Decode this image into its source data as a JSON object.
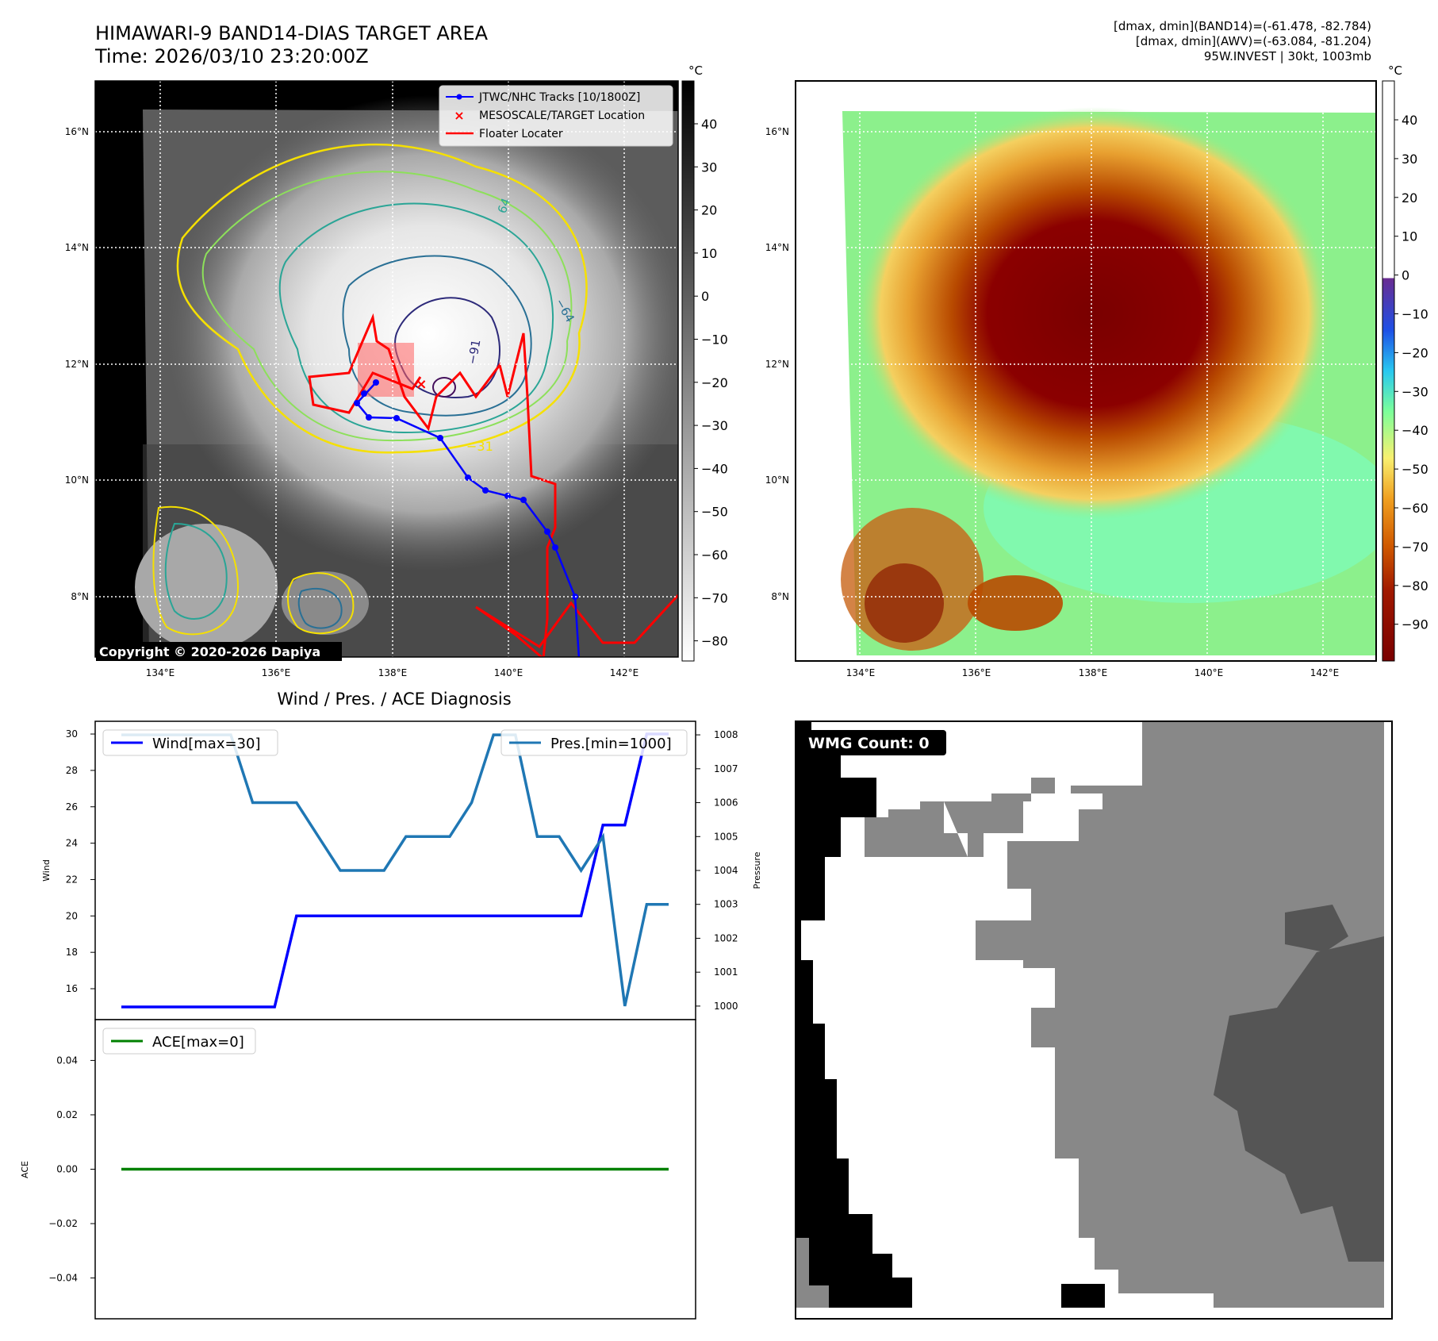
{
  "header": {
    "title": "HIMAWARI-9 BAND14-DIAS TARGET AREA",
    "time": "Time: 2026/03/10 23:20:00Z",
    "info_line1": "[dmax, dmin](BAND14)=(-61.478, -82.784)",
    "info_line2": "[dmax, dmin](AWV)=(-63.084, -81.204)",
    "info_line3": "95W.INVEST | 30kt, 1003mb"
  },
  "maps": {
    "lon_ticks": [
      "134°E",
      "136°E",
      "138°E",
      "140°E",
      "142°E"
    ],
    "lat_ticks": [
      "16°N",
      "14°N",
      "12°N",
      "10°N",
      "8°N"
    ],
    "unit": "°C",
    "bw_colorbar_ticks": [
      "40",
      "30",
      "20",
      "10",
      "0",
      "−10",
      "−20",
      "−30",
      "−40",
      "−50",
      "−60",
      "−70",
      "−80"
    ],
    "color_colorbar_ticks": [
      "40",
      "30",
      "20",
      "10",
      "0",
      "−10",
      "−20",
      "−30",
      "−40",
      "−50",
      "−60",
      "−70",
      "−80",
      "−90"
    ],
    "legend": {
      "tracks": "JTWC/NHC Tracks [10/1800Z]",
      "target": "MESOSCALE/TARGET Location",
      "floater": "Floater Locater"
    },
    "contour_labels": [
      "−31",
      "64",
      "−64",
      "−91",
      "−31",
      "64"
    ],
    "copyright": "Copyright © 2020-2026 Dapiya",
    "colors": {
      "track": "#0000ff",
      "floater": "#ff0000",
      "target": "#ff0000"
    }
  },
  "diagnosis": {
    "title": "Wind / Pres. / ACE Diagnosis",
    "wind_legend": "Wind[max=30]",
    "pres_legend": "Pres.[min=1000]",
    "ace_legend": "ACE[max=0]",
    "wind_axis_label": "Wind",
    "pres_axis_label": "Pressure",
    "ace_axis_label": "ACE"
  },
  "wmg": {
    "label": "WMG Count: 0"
  },
  "chart_data": [
    {
      "type": "line",
      "title": "Wind / Pres. / ACE Diagnosis",
      "x": [
        0,
        1,
        2,
        3,
        4,
        5,
        6,
        7,
        8,
        9,
        10,
        11,
        12,
        13,
        14,
        15,
        16,
        17,
        18,
        19,
        20,
        21,
        22,
        23,
        24,
        25
      ],
      "series": [
        {
          "name": "Wind[max=30]",
          "axis": "left",
          "color": "#0000ff",
          "values": [
            15,
            15,
            15,
            15,
            15,
            15,
            15,
            15,
            20,
            20,
            20,
            20,
            20,
            20,
            20,
            20,
            20,
            20,
            20,
            20,
            20,
            20,
            25,
            25,
            30,
            30
          ]
        },
        {
          "name": "Pres.[min=1000]",
          "axis": "right",
          "color": "#1f77b4",
          "values": [
            1008,
            1008,
            1008,
            1008,
            1008,
            1008,
            1006,
            1006,
            1006,
            1005,
            1004,
            1004,
            1004,
            1005,
            1005,
            1005,
            1006,
            1008,
            1008,
            1005,
            1005,
            1004,
            1005,
            1000,
            1003,
            1003
          ]
        }
      ],
      "ylabel": "Wind",
      "ylim": [
        14.3,
        30.7
      ],
      "y_ticks": [
        16,
        18,
        20,
        22,
        24,
        26,
        28,
        30
      ],
      "y2label": "Pressure",
      "y2lim": [
        999.6,
        1008.4
      ],
      "y2_ticks": [
        1000,
        1001,
        1002,
        1003,
        1004,
        1005,
        1006,
        1007,
        1008
      ]
    },
    {
      "type": "line",
      "x": [
        0,
        25
      ],
      "series": [
        {
          "name": "ACE[max=0]",
          "color": "#008000",
          "values": [
            0,
            0
          ]
        }
      ],
      "ylabel": "ACE",
      "ylim": [
        -0.055,
        0.055
      ],
      "y_ticks": [
        0.04,
        0.02,
        0.0,
        -0.02,
        -0.04
      ],
      "y_tick_labels": [
        "0.04",
        "0.02",
        "0.00",
        "−0.02",
        "−0.04"
      ]
    }
  ]
}
